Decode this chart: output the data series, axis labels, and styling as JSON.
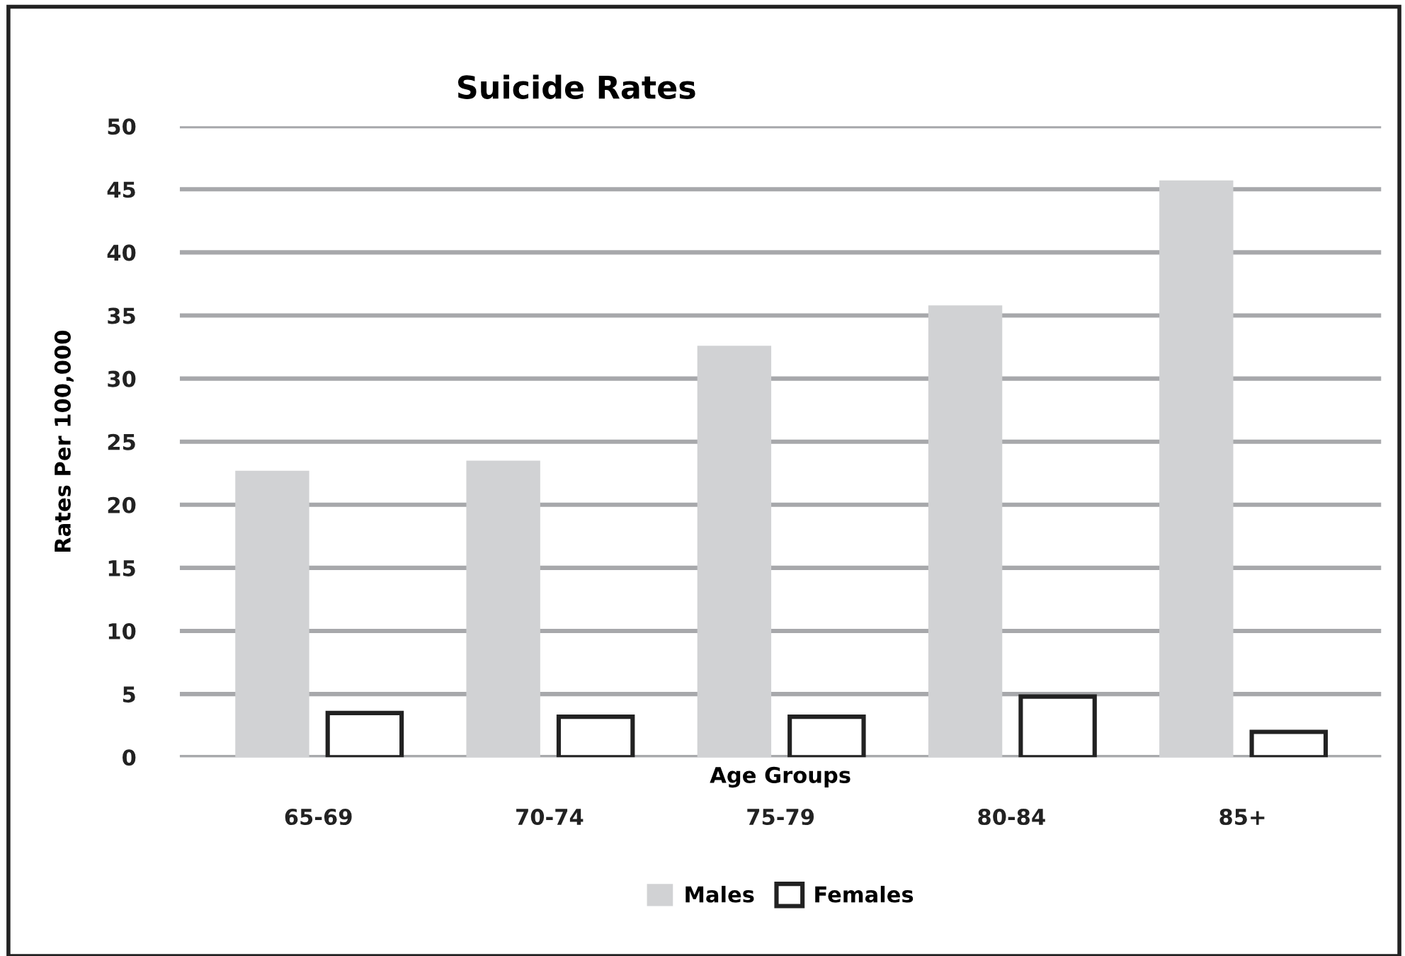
{
  "chart_data": {
    "type": "bar",
    "title": "Suicide Rates",
    "xlabel": "Age Groups",
    "ylabel": "Rates Per 100,000",
    "categories": [
      "65-69",
      "70-74",
      "75-79",
      "80-84",
      "85+"
    ],
    "series": [
      {
        "name": "Males",
        "color": "#d1d2d4",
        "values": [
          22.7,
          23.5,
          32.6,
          35.8,
          45.7
        ]
      },
      {
        "name": "Females",
        "color": "#ffffff",
        "values": [
          3.5,
          3.2,
          3.2,
          4.8,
          2.0
        ]
      }
    ],
    "ylim": [
      0,
      50
    ],
    "yticks": [
      0,
      5,
      10,
      15,
      20,
      25,
      30,
      35,
      40,
      45,
      50
    ],
    "grid": "y",
    "legend": "bottom"
  }
}
